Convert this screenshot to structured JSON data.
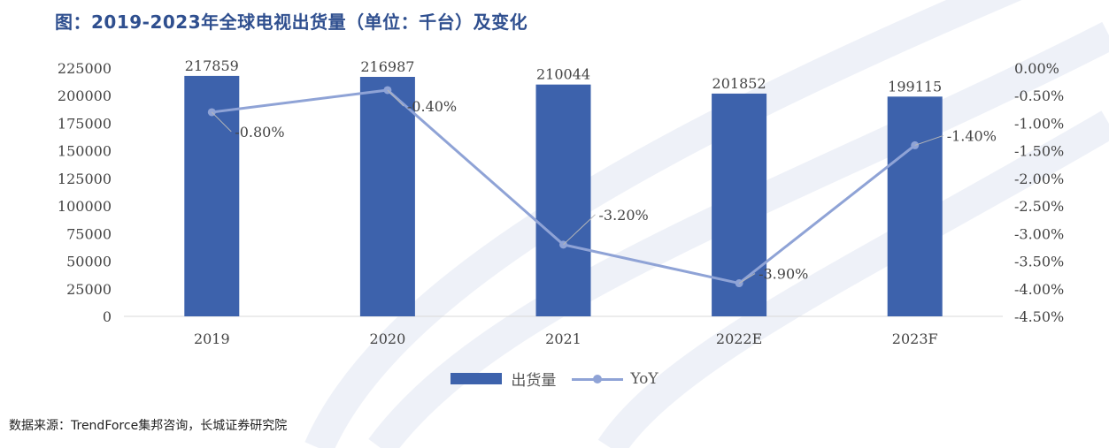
{
  "title": "图：2019-2023年全球电视出货量（单位：千台）及变化",
  "source": "数据来源：TrendForce集邦咨询，长城证券研究院",
  "colors": {
    "bar": "#3d62ac",
    "line": "#8fa3d6",
    "title": "#2f4f8f",
    "text": "#444444",
    "grid": "#d9d9d9"
  },
  "chart_data": {
    "type": "bar",
    "categories": [
      "2019",
      "2020",
      "2021",
      "2022E",
      "2023F"
    ],
    "series": [
      {
        "name": "出货量",
        "type": "bar",
        "axis": "left",
        "values": [
          217859,
          216987,
          210044,
          201852,
          199115
        ],
        "labels": [
          "217859",
          "216987",
          "210044",
          "201852",
          "199115"
        ]
      },
      {
        "name": "YoY",
        "type": "line",
        "axis": "right",
        "values": [
          -0.8,
          -0.4,
          -3.2,
          -3.9,
          -1.4
        ],
        "labels": [
          "-0.80%",
          "-0.40%",
          "-3.20%",
          "-3.90%",
          "-1.40%"
        ]
      }
    ],
    "y_left": {
      "min": 0,
      "max": 225000,
      "ticks": [
        "0",
        "25000",
        "50000",
        "75000",
        "100000",
        "125000",
        "150000",
        "175000",
        "200000",
        "225000"
      ]
    },
    "y_right": {
      "min": -4.5,
      "max": 0,
      "ticks": [
        "0.00%",
        "-0.50%",
        "-1.00%",
        "-1.50%",
        "-2.00%",
        "-2.50%",
        "-3.00%",
        "-3.50%",
        "-4.00%",
        "-4.50%"
      ]
    },
    "legend_position": "bottom",
    "grid": false
  }
}
